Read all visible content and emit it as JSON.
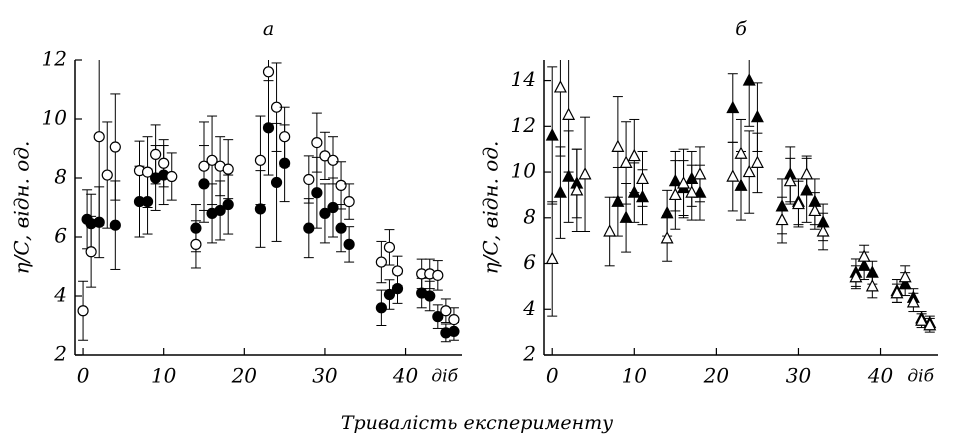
{
  "xlabel": "Тривалість експерименту",
  "chart_data": [
    {
      "type": "scatter",
      "title": "а",
      "ylabel": "η/C, відн. од.",
      "xunit": "діб",
      "xlim": [
        -1,
        47
      ],
      "ylim": [
        2,
        12
      ],
      "xticks": [
        0,
        10,
        20,
        30,
        40
      ],
      "yticks": [
        2,
        4,
        6,
        8,
        10,
        12
      ],
      "series": [
        {
          "marker": "circle",
          "filled": true,
          "color": "#000000",
          "x": [
            0.5,
            1,
            2,
            4,
            7,
            8,
            9,
            10,
            14,
            15,
            16,
            17,
            18,
            22,
            23,
            24,
            25,
            28,
            29,
            30,
            31,
            32,
            33,
            37,
            38,
            39,
            42,
            43,
            44,
            45,
            46
          ],
          "values": [
            6.6,
            6.45,
            6.5,
            6.4,
            7.2,
            7.2,
            8.0,
            8.1,
            6.3,
            7.8,
            6.8,
            6.9,
            7.1,
            6.95,
            9.7,
            7.85,
            8.5,
            6.3,
            7.5,
            6.8,
            7.0,
            6.3,
            5.75,
            3.6,
            4.05,
            4.25,
            4.1,
            4.0,
            3.3,
            2.75,
            2.8
          ],
          "errors": [
            1.0,
            1.0,
            1.2,
            1.5,
            1.2,
            1.1,
            1.1,
            1.0,
            0.8,
            1.3,
            1.0,
            1.0,
            1.0,
            1.3,
            1.6,
            2.0,
            1.3,
            1.0,
            1.2,
            1.0,
            1.0,
            0.8,
            0.6,
            0.6,
            0.5,
            0.5,
            0.5,
            0.5,
            0.4,
            0.3,
            0.3
          ]
        },
        {
          "marker": "circle",
          "filled": false,
          "color": "#000000",
          "x": [
            0,
            1,
            2,
            3,
            4,
            7,
            8,
            9,
            10,
            11,
            14,
            15,
            16,
            17,
            18,
            22,
            23,
            24,
            25,
            28,
            29,
            30,
            31,
            32,
            33,
            37,
            38,
            39,
            42,
            43,
            44,
            45,
            46
          ],
          "values": [
            3.5,
            5.5,
            9.4,
            8.1,
            9.05,
            8.25,
            8.2,
            8.8,
            8.5,
            8.05,
            5.75,
            8.4,
            8.6,
            8.4,
            8.3,
            8.6,
            11.6,
            10.4,
            9.4,
            7.95,
            9.2,
            8.75,
            8.6,
            7.75,
            7.2,
            5.15,
            5.65,
            4.85,
            4.75,
            4.75,
            4.7,
            3.5,
            3.2
          ],
          "errors": [
            1.0,
            1.2,
            3.0,
            1.8,
            1.8,
            1.0,
            1.2,
            1.0,
            0.8,
            0.8,
            0.8,
            1.5,
            1.5,
            1.0,
            1.0,
            1.5,
            1.8,
            1.5,
            1.0,
            0.8,
            1.0,
            0.8,
            0.8,
            0.8,
            0.6,
            0.7,
            0.6,
            0.5,
            0.5,
            0.5,
            0.5,
            0.4,
            0.4
          ]
        }
      ]
    },
    {
      "type": "scatter",
      "title": "б",
      "ylabel": "η/C, відн. од.",
      "xunit": "діб",
      "xlim": [
        -1,
        47
      ],
      "ylim": [
        2,
        14.9
      ],
      "xticks": [
        0,
        10,
        20,
        30,
        40
      ],
      "yticks": [
        2,
        4,
        6,
        8,
        10,
        12,
        14
      ],
      "series": [
        {
          "marker": "triangle",
          "filled": true,
          "color": "#000000",
          "x": [
            0,
            1,
            2,
            3,
            8,
            9,
            10,
            11,
            14,
            15,
            16,
            17,
            18,
            22,
            23,
            24,
            25,
            28,
            29,
            30,
            31,
            32,
            33,
            37,
            38,
            39,
            42,
            43,
            44,
            45,
            46
          ],
          "values": [
            11.6,
            9.1,
            9.8,
            9.5,
            8.7,
            8.0,
            9.1,
            8.9,
            8.2,
            9.6,
            9.3,
            9.7,
            9.1,
            12.8,
            9.4,
            14.0,
            12.4,
            8.5,
            9.9,
            8.7,
            9.2,
            8.7,
            7.8,
            5.6,
            5.9,
            5.6,
            4.8,
            5.1,
            4.5,
            3.6,
            3.4
          ],
          "errors": [
            3.0,
            2.0,
            2.0,
            1.5,
            1.5,
            1.5,
            1.3,
            1.2,
            1.0,
            1.3,
            1.2,
            1.2,
            1.2,
            1.5,
            1.5,
            2.0,
            1.5,
            1.2,
            1.2,
            1.0,
            1.4,
            1.0,
            0.8,
            0.6,
            0.6,
            0.5,
            0.5,
            0.5,
            0.4,
            0.3,
            0.3
          ]
        },
        {
          "marker": "triangle",
          "filled": false,
          "color": "#000000",
          "x": [
            0,
            1,
            2,
            3,
            4,
            7,
            8,
            9,
            10,
            11,
            14,
            15,
            16,
            17,
            18,
            22,
            23,
            24,
            25,
            28,
            29,
            30,
            31,
            32,
            33,
            37,
            38,
            39,
            42,
            43,
            44,
            45,
            46
          ],
          "values": [
            6.2,
            13.7,
            12.5,
            9.2,
            9.9,
            7.4,
            11.1,
            10.4,
            10.7,
            9.7,
            7.1,
            9.0,
            9.5,
            9.1,
            9.9,
            9.8,
            10.8,
            10.0,
            10.4,
            7.9,
            9.6,
            8.6,
            9.9,
            8.3,
            7.4,
            5.4,
            6.3,
            5.0,
            4.7,
            5.4,
            4.3,
            3.5,
            3.3
          ],
          "errors": [
            2.5,
            3.0,
            2.5,
            1.8,
            2.5,
            1.5,
            2.2,
            1.8,
            1.6,
            1.2,
            1.0,
            1.5,
            1.5,
            1.2,
            1.2,
            1.5,
            1.5,
            1.8,
            1.3,
            1.0,
            1.0,
            1.0,
            0.8,
            0.8,
            0.8,
            0.5,
            0.5,
            0.5,
            0.4,
            0.5,
            0.4,
            0.3,
            0.3
          ]
        }
      ]
    }
  ]
}
